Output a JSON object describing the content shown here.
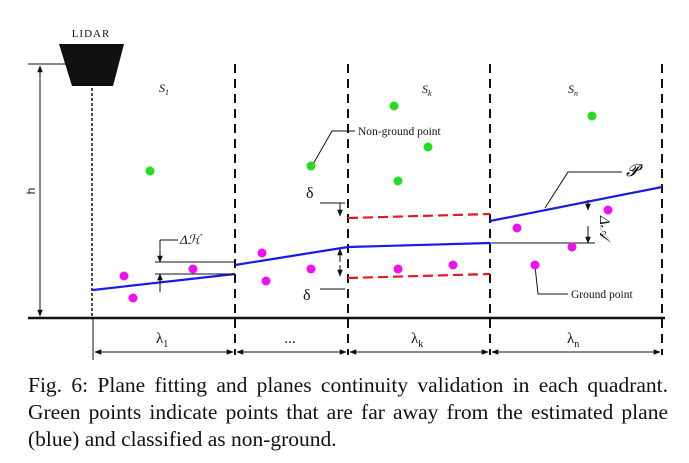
{
  "diagram": {
    "lidar_label": "LIDAR",
    "height_label": "h",
    "segments": [
      {
        "label": "S",
        "sub": "1"
      },
      {
        "label": "S",
        "sub": "k"
      },
      {
        "label": "S",
        "sub": "n"
      }
    ],
    "bottom_labels": [
      {
        "label": "λ",
        "sub": "1"
      },
      {
        "label": "...",
        "sub": ""
      },
      {
        "label": "λ",
        "sub": "k"
      },
      {
        "label": "λ",
        "sub": "n"
      }
    ],
    "delta_label": "δ",
    "delta_h_label": "Δℋ",
    "plane_label": "𝓟",
    "delta_a_label": "Δ𝒜",
    "non_ground_label": "Non-ground point",
    "ground_label": "Ground point",
    "colors": {
      "plane": "#1a1ae6",
      "non_ground": "#22dd22",
      "ground": "#ee11ee",
      "threshold": "#e61a1a",
      "ink": "#111111"
    }
  },
  "caption": {
    "prefix": "Fig. 6:",
    "text": "Plane fitting and planes continuity validation in each quadrant. Green points indicate points that are far away from the estimated plane (blue) and classified as non-ground."
  }
}
